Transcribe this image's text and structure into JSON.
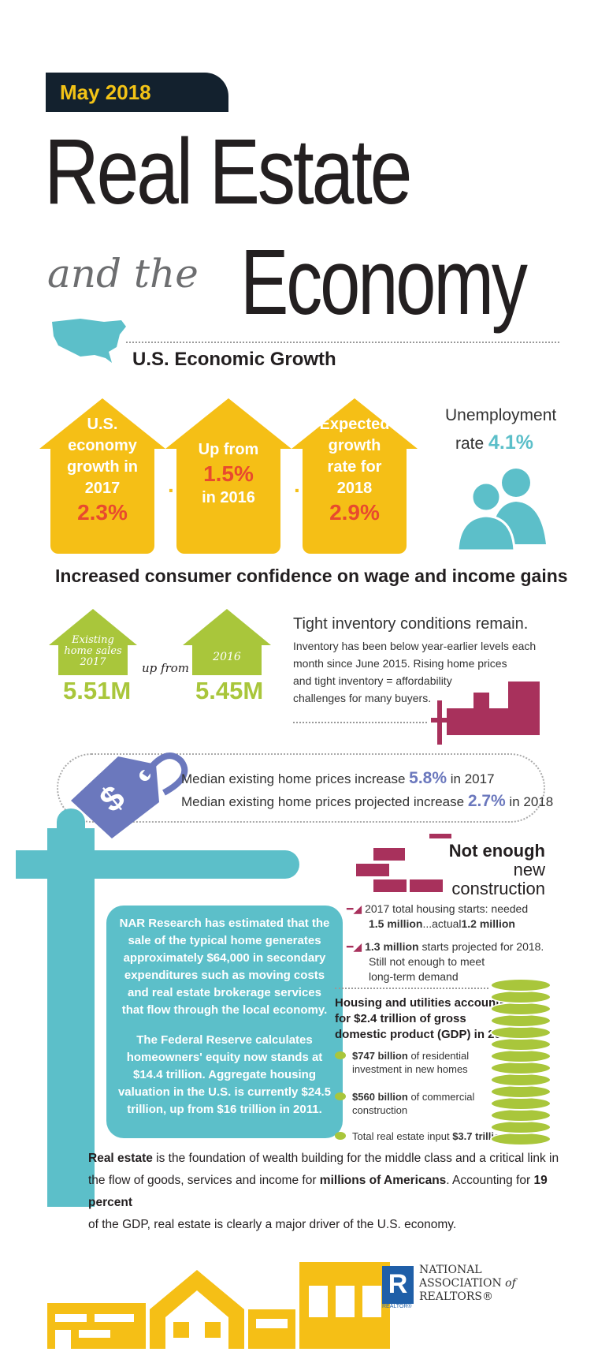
{
  "header": {
    "date": "May 2018",
    "title_line1": "Real Estate",
    "title_and_the": "and the",
    "title_economy": "Economy"
  },
  "growth": {
    "heading": "U.S. Economic Growth",
    "arrows": [
      {
        "text": [
          "U.S.",
          "economy",
          "growth in",
          "2017"
        ],
        "value": "2.3%"
      },
      {
        "text": [
          "Up from"
        ],
        "value": "1.5%",
        "after": "in 2016"
      },
      {
        "text": [
          "Expected",
          "growth",
          "rate for",
          "2018"
        ],
        "value": "2.9%"
      }
    ],
    "unemployment_label": "Unemployment",
    "rate_label": "rate",
    "rate_value": "4.1%"
  },
  "confidence": {
    "heading": "Increased consumer confidence on wage and income gains",
    "house1_label": [
      "Existing",
      "home sales",
      "2017"
    ],
    "house1_value": "5.51M",
    "up_from": "up from",
    "house2_label": "2016",
    "house2_value": "5.45M",
    "inventory_title": "Tight inventory conditions remain.",
    "inventory_text": [
      "Inventory has been below year-earlier levels each",
      "month since June 2015. Rising home prices",
      "and tight inventory = affordability",
      "challenges for many buyers."
    ]
  },
  "prices": {
    "line1_pre": "Median existing home prices increase",
    "line1_value": "5.8%",
    "line1_post": "in 2017",
    "line2_pre": "Median existing home prices projected increase",
    "line2_value": "2.7%",
    "line2_post": "in 2018"
  },
  "construction": {
    "title_bold": "Not enough",
    "title_rest": "new",
    "title_line2": "construction",
    "item1_a": "2017 total housing starts: needed",
    "item1_b1": "1.5 million",
    "item1_b2": "...actual",
    "item1_b3": "1.2 million",
    "item2_a1": "1.3 million",
    "item2_a2": "starts projected for 2018.",
    "item2_b": "Still not enough to meet",
    "item2_c": "long-term demand"
  },
  "gdp": {
    "heading": [
      "Housing and utilities accounted",
      "for $2.4 trillion of gross",
      "domestic product (GDP) in 2017"
    ],
    "items": [
      {
        "bold": "$747 billion",
        "rest": "of residential",
        "rest2": "investment in new homes"
      },
      {
        "bold": "$560 billion",
        "rest": "of commercial",
        "rest2": "construction"
      },
      {
        "bold": "$3.7 trillion",
        "rest": "Total real estate input",
        "rest2": ""
      }
    ]
  },
  "sign": {
    "para1": [
      "NAR Research has estimated that the",
      "sale of the typical home generates",
      "approximately $64,000 in secondary",
      "expenditures such as moving costs",
      "and real estate brokerage services",
      "that flow through the local economy."
    ],
    "para2": [
      "The Federal Reserve calculates",
      "homeowners' equity now stands at",
      "$14.4 trillion. Aggregate housing",
      "valuation in the U.S. is currently $24.5",
      "trillion, up from $16 trillion in 2011."
    ]
  },
  "footer": {
    "b1": "Real estate",
    "t1": " is the foundation of wealth building for the middle class and a critical link in",
    "t2": "the flow of goods, services and income for ",
    "b2": "millions of Americans",
    "t3": ". Accounting for ",
    "b3": "19 percent",
    "t4": "of the GDP, real estate is clearly a major driver of the U.S. economy."
  },
  "logo": {
    "line1": "NATIONAL",
    "line2": "ASSOCIATION",
    "of": "of",
    "line3": "REALTORS®",
    "badge": "R",
    "badge_sub": "REALTOR®"
  },
  "colors": {
    "yellow": "#f5bf16",
    "orange": "#e84a2e",
    "lime": "#a9c63b",
    "teal": "#5cbfc9",
    "brick": "#a8315c",
    "purple": "#6b78bd",
    "navy": "#13212e"
  }
}
